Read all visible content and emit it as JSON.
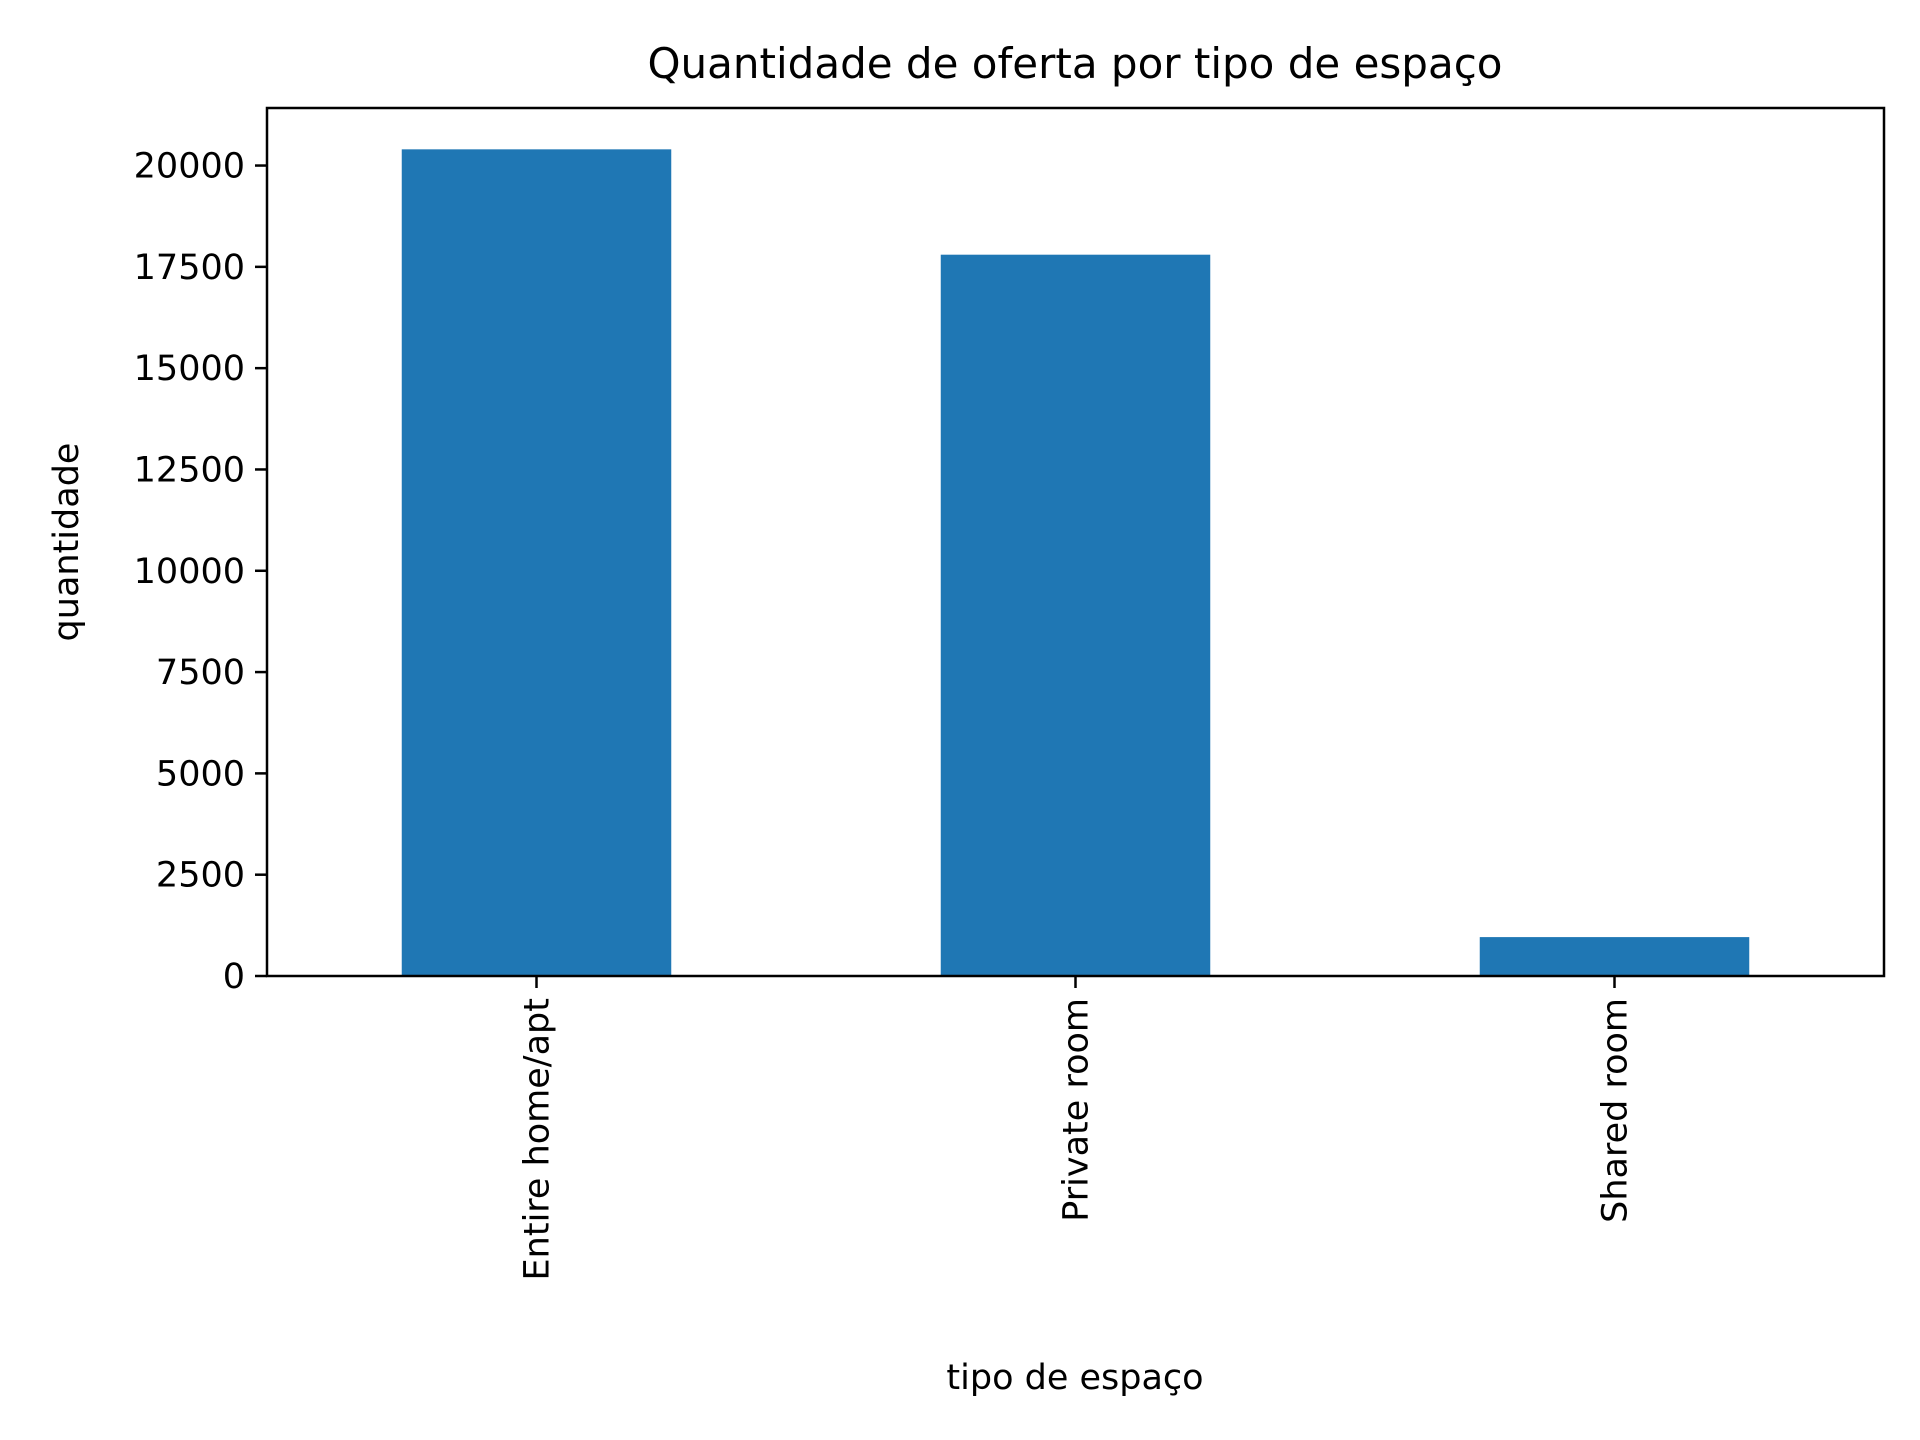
{
  "chart_data": {
    "type": "bar",
    "title": "Quantidade de oferta por tipo de espaço",
    "xlabel": "tipo de espaço",
    "ylabel": "quantidade",
    "categories": [
      "Entire home/apt",
      "Private room",
      "Shared room"
    ],
    "values": [
      20400,
      17800,
      960
    ],
    "ylim": [
      0,
      21420
    ],
    "yticks": [
      0,
      2500,
      5000,
      7500,
      10000,
      12500,
      15000,
      17500,
      20000
    ],
    "ytick_labels": [
      "0",
      "2500",
      "5000",
      "7500",
      "10000",
      "12500",
      "15000",
      "17500",
      "20000"
    ],
    "bar_color": "#1f77b4",
    "grid": false,
    "legend": "none"
  }
}
